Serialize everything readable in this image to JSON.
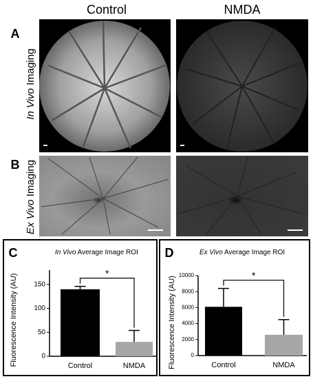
{
  "figure": {
    "columns": [
      "Control",
      "NMDA"
    ],
    "panels": [
      "A",
      "B"
    ],
    "rows": [
      {
        "emphasis": "In Vivo",
        "rest": " Imaging"
      },
      {
        "emphasis": "Ex Vivo",
        "rest": " Imaging"
      }
    ]
  },
  "chart_data": [
    {
      "type": "bar",
      "panel": "C",
      "title_emphasis": "In Vivo",
      "title_rest": " Average Image ROI",
      "y_label": "Fluorescence Intensity (AU)",
      "categories": [
        "Control",
        "NMDA"
      ],
      "values": [
        140,
        30
      ],
      "errors": [
        6,
        24
      ],
      "colors": [
        "#000000",
        "#a6a6a6"
      ],
      "ylim": [
        0,
        180
      ],
      "yticks": [
        0,
        50,
        100,
        150
      ],
      "annotation": "*"
    },
    {
      "type": "bar",
      "panel": "D",
      "title_emphasis": "Ex Vivo",
      "title_rest": " Average Image ROI",
      "y_label": "Fluorescence Intensity (AU)",
      "categories": [
        "Control",
        "NMDA"
      ],
      "values": [
        6100,
        2600
      ],
      "errors": [
        2300,
        1900
      ],
      "colors": [
        "#000000",
        "#a6a6a6"
      ],
      "ylim": [
        0,
        10000
      ],
      "yticks": [
        0,
        2000,
        4000,
        6000,
        8000,
        10000
      ],
      "annotation": "*"
    }
  ]
}
